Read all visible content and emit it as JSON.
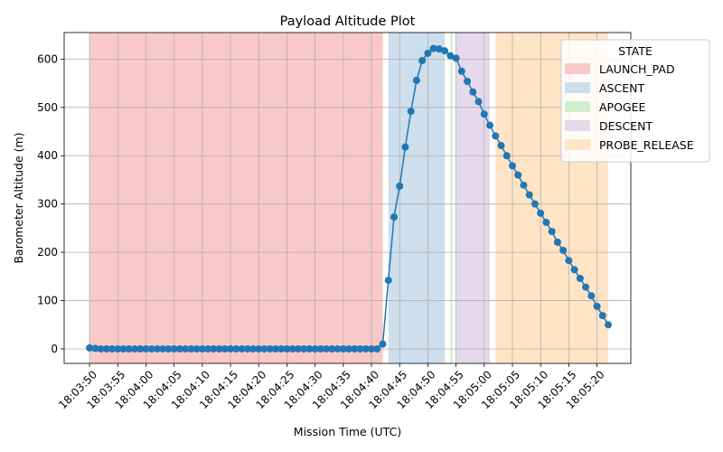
{
  "chart_data": {
    "type": "line",
    "title": "Payload Altitude Plot",
    "xlabel": "Mission Time (UTC)",
    "ylabel": "Barometer Altitude (m)",
    "grid": true,
    "legend": {
      "title": "STATE",
      "placement": "top-right (partly outside plot)"
    },
    "xlim": [
      "18:03:45.5",
      "18:05:26.0"
    ],
    "ylim": [
      -30,
      655
    ],
    "x_ticks": [
      "18:03:50",
      "18:03:55",
      "18:04:00",
      "18:04:05",
      "18:04:10",
      "18:04:15",
      "18:04:20",
      "18:04:25",
      "18:04:30",
      "18:04:35",
      "18:04:40",
      "18:04:45",
      "18:04:50",
      "18:04:55",
      "18:05:00",
      "18:05:05",
      "18:05:10",
      "18:05:15",
      "18:05:20"
    ],
    "y_ticks": [
      0,
      100,
      200,
      300,
      400,
      500,
      600
    ],
    "states": [
      {
        "name": "LAUNCH_PAD",
        "start": "18:03:50",
        "end": "18:04:42",
        "color": "#f9c9c7"
      },
      {
        "name": "ASCENT",
        "start": "18:04:43",
        "end": "18:04:53",
        "color": "#cddeec"
      },
      {
        "name": "APOGEE",
        "start": "18:04:54",
        "end": "18:04:54",
        "color": "#cfeec9"
      },
      {
        "name": "DESCENT",
        "start": "18:04:55",
        "end": "18:05:01",
        "color": "#e6d9eb"
      },
      {
        "name": "PROBE_RELEASE",
        "start": "18:05:02",
        "end": "18:05:22",
        "color": "#ffe4c6"
      }
    ],
    "series": [
      {
        "color": "#1f77b4",
        "x": [
          "18:03:50",
          "18:03:51",
          "18:03:52",
          "18:03:53",
          "18:03:54",
          "18:03:55",
          "18:03:56",
          "18:03:57",
          "18:03:58",
          "18:03:59",
          "18:04:00",
          "18:04:01",
          "18:04:02",
          "18:04:03",
          "18:04:04",
          "18:04:05",
          "18:04:06",
          "18:04:07",
          "18:04:08",
          "18:04:09",
          "18:04:10",
          "18:04:11",
          "18:04:12",
          "18:04:13",
          "18:04:14",
          "18:04:15",
          "18:04:16",
          "18:04:17",
          "18:04:18",
          "18:04:19",
          "18:04:20",
          "18:04:21",
          "18:04:22",
          "18:04:23",
          "18:04:24",
          "18:04:25",
          "18:04:26",
          "18:04:27",
          "18:04:28",
          "18:04:29",
          "18:04:30",
          "18:04:31",
          "18:04:32",
          "18:04:33",
          "18:04:34",
          "18:04:35",
          "18:04:36",
          "18:04:37",
          "18:04:38",
          "18:04:39",
          "18:04:40",
          "18:04:41",
          "18:04:42",
          "18:04:43",
          "18:04:44",
          "18:04:45",
          "18:04:46",
          "18:04:47",
          "18:04:48",
          "18:04:49",
          "18:04:50",
          "18:04:51",
          "18:04:52",
          "18:04:53",
          "18:04:54",
          "18:04:55",
          "18:04:56",
          "18:04:57",
          "18:04:58",
          "18:04:59",
          "18:05:00",
          "18:05:01",
          "18:05:02",
          "18:05:03",
          "18:05:04",
          "18:05:05",
          "18:05:06",
          "18:05:07",
          "18:05:08",
          "18:05:09",
          "18:05:10",
          "18:05:11",
          "18:05:12",
          "18:05:13",
          "18:05:14",
          "18:05:15",
          "18:05:16",
          "18:05:17",
          "18:05:18",
          "18:05:19",
          "18:05:20",
          "18:05:21",
          "18:05:22"
        ],
        "y": [
          2,
          1,
          0,
          0,
          0,
          0,
          0,
          0,
          0,
          0,
          0,
          0,
          0,
          0,
          0,
          0,
          0,
          0,
          0,
          0,
          0,
          0,
          0,
          0,
          0,
          0,
          0,
          0,
          0,
          0,
          0,
          0,
          0,
          0,
          0,
          0,
          0,
          0,
          0,
          0,
          0,
          0,
          0,
          0,
          0,
          0,
          0,
          0,
          0,
          0,
          0,
          0,
          10,
          142,
          273,
          337,
          418,
          492,
          556,
          597,
          612,
          622,
          621,
          617,
          607,
          602,
          575,
          554,
          532,
          512,
          486,
          463,
          441,
          421,
          400,
          379,
          360,
          339,
          319,
          300,
          281,
          262,
          243,
          221,
          204,
          183,
          164,
          146,
          128,
          110,
          88,
          69,
          50
        ]
      }
    ]
  }
}
